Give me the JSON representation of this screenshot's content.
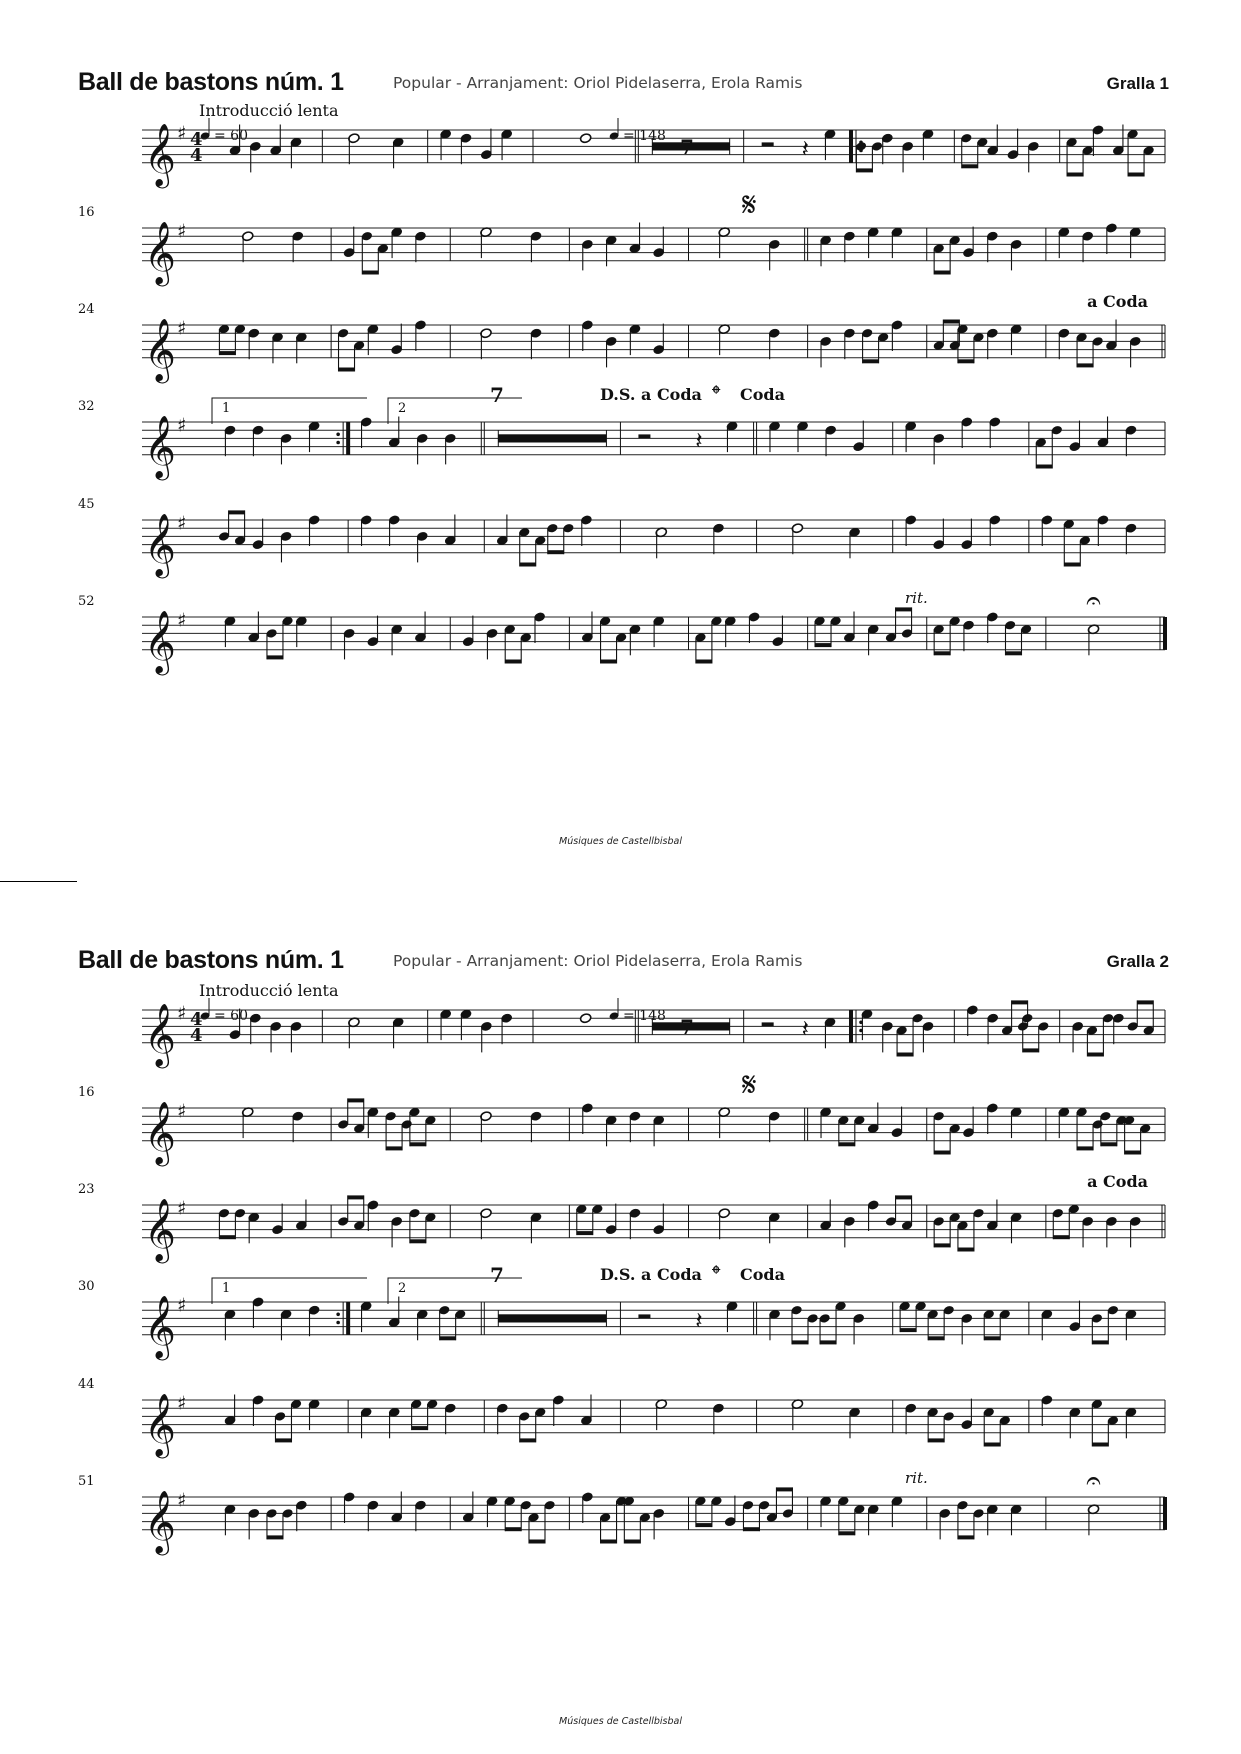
{
  "pages": [
    {
      "title": "Ball de bastons núm. 1",
      "subtitle": "Popular - Arranjament: Oriol Pidelaserra, Erola Ramis",
      "part": "Gralla 1",
      "tempo_intro_label": "Introducció lenta",
      "tempo_intro": "= 60",
      "tempo_main": "= 148",
      "time_signature": [
        "4",
        "4"
      ],
      "multirest_count": "7",
      "system_numbers": [
        "16",
        "24",
        "32",
        "45",
        "52"
      ],
      "markings": {
        "segno": "𝄋",
        "a_coda": "a Coda",
        "volta1": "1",
        "volta2": "2",
        "ds_a_coda": "D.S. a Coda",
        "coda_symbol": "𝄌",
        "coda": "Coda",
        "multirest2": "7",
        "rit": "rit."
      },
      "footer": "Músiques de Castellbisbal"
    },
    {
      "title": "Ball de bastons núm. 1",
      "subtitle": "Popular - Arranjament: Oriol Pidelaserra, Erola Ramis",
      "part": "Gralla 2",
      "tempo_intro_label": "Introducció lenta",
      "tempo_intro": "= 60",
      "tempo_main": "= 148",
      "time_signature": [
        "4",
        "4"
      ],
      "multirest_count": "7",
      "system_numbers": [
        "16",
        "23",
        "30",
        "44",
        "51"
      ],
      "markings": {
        "segno": "𝄋",
        "a_coda": "a Coda",
        "volta1": "1",
        "volta2": "2",
        "ds_a_coda": "D.S. a Coda",
        "coda_symbol": "𝄌",
        "coda": "Coda",
        "multirest2": "7",
        "rit": "rit."
      },
      "footer": "Músiques de Castellbisbal"
    }
  ]
}
